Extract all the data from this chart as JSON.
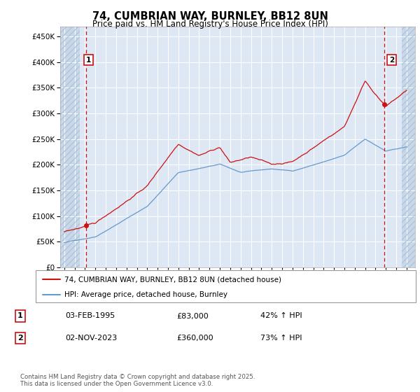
{
  "title": "74, CUMBRIAN WAY, BURNLEY, BB12 8UN",
  "subtitle": "Price paid vs. HM Land Registry's House Price Index (HPI)",
  "ylim": [
    0,
    470000
  ],
  "yticks": [
    0,
    50000,
    100000,
    150000,
    200000,
    250000,
    300000,
    350000,
    400000,
    450000
  ],
  "ytick_labels": [
    "£0",
    "£50K",
    "£100K",
    "£150K",
    "£200K",
    "£250K",
    "£300K",
    "£350K",
    "£400K",
    "£450K"
  ],
  "xlim_start": 1992.6,
  "xlim_end": 2026.8,
  "hatch_left_end": 1994.5,
  "hatch_right_start": 2025.5,
  "hpi_color": "#6699cc",
  "price_color": "#cc1111",
  "marker1_x": 1995.08,
  "marker1_label": "1",
  "marker2_x": 2023.84,
  "marker2_label": "2",
  "annotation1_date": "03-FEB-1995",
  "annotation1_price": "£83,000",
  "annotation1_hpi": "42% ↑ HPI",
  "annotation2_date": "02-NOV-2023",
  "annotation2_price": "£360,000",
  "annotation2_hpi": "73% ↑ HPI",
  "legend_line1": "74, CUMBRIAN WAY, BURNLEY, BB12 8UN (detached house)",
  "legend_line2": "HPI: Average price, detached house, Burnley",
  "footnote": "Contains HM Land Registry data © Crown copyright and database right 2025.\nThis data is licensed under the Open Government Licence v3.0.",
  "bg_main": "#dde8f4",
  "bg_hatch": "#c8d8ea",
  "grid_color": "#f0f4f8",
  "hatch_color": "#b0c4d8"
}
